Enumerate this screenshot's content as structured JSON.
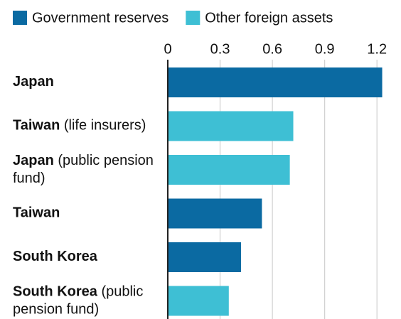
{
  "chart_data": {
    "type": "bar",
    "orientation": "horizontal",
    "categories": [
      {
        "name": "Japan"
      },
      {
        "name": "Taiwan",
        "note": "(life insurers)"
      },
      {
        "name": "Japan",
        "note": "(public pension fund)"
      },
      {
        "name": "Taiwan"
      },
      {
        "name": "South Korea"
      },
      {
        "name": "South Korea",
        "note": "(public pension fund)"
      }
    ],
    "series": [
      {
        "name": "Government reserves",
        "color": "#0b6aa2",
        "values": [
          1.23,
          null,
          null,
          0.54,
          0.42,
          null
        ]
      },
      {
        "name": "Other foreign assets",
        "color": "#3ebfd4",
        "values": [
          null,
          0.72,
          0.7,
          null,
          null,
          0.35
        ]
      }
    ],
    "xlim": [
      0,
      1.24
    ],
    "xticks": [
      0,
      0.3,
      0.6,
      0.9,
      1.2
    ],
    "grid": true
  }
}
